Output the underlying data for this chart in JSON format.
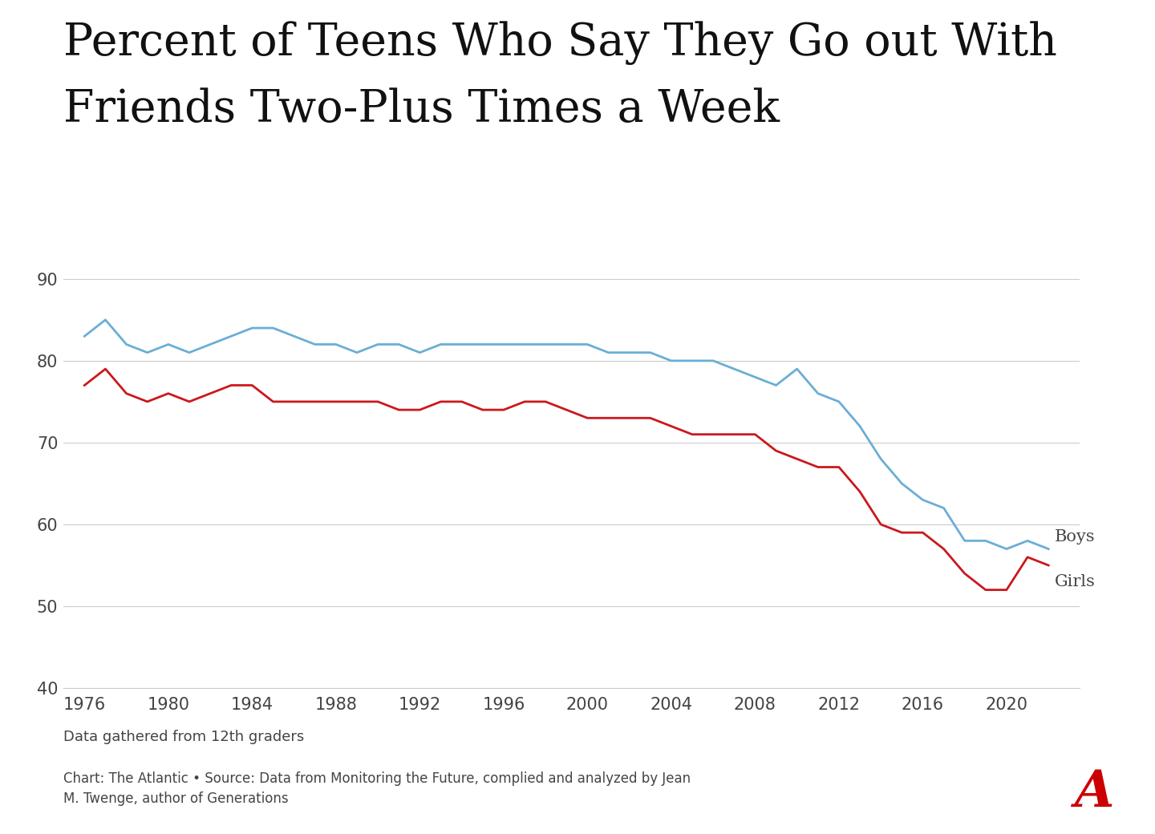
{
  "title_line1": "Percent of Teens Who Say They Go out With",
  "title_line2": "Friends Two-Plus Times a Week",
  "title_fontsize": 40,
  "boys_data": {
    "years": [
      1976,
      1977,
      1978,
      1979,
      1980,
      1981,
      1982,
      1983,
      1984,
      1985,
      1986,
      1987,
      1988,
      1989,
      1990,
      1991,
      1992,
      1993,
      1994,
      1995,
      1996,
      1997,
      1998,
      1999,
      2000,
      2001,
      2002,
      2003,
      2004,
      2005,
      2006,
      2007,
      2008,
      2009,
      2010,
      2011,
      2012,
      2013,
      2014,
      2015,
      2016,
      2017,
      2018,
      2019,
      2020,
      2021,
      2022
    ],
    "values": [
      83,
      85,
      82,
      81,
      82,
      81,
      82,
      83,
      84,
      84,
      83,
      82,
      82,
      81,
      82,
      82,
      81,
      82,
      82,
      82,
      82,
      82,
      82,
      82,
      82,
      81,
      81,
      81,
      80,
      80,
      80,
      79,
      78,
      77,
      79,
      76,
      75,
      72,
      68,
      65,
      63,
      62,
      58,
      58,
      57,
      58,
      57
    ]
  },
  "girls_data": {
    "years": [
      1976,
      1977,
      1978,
      1979,
      1980,
      1981,
      1982,
      1983,
      1984,
      1985,
      1986,
      1987,
      1988,
      1989,
      1990,
      1991,
      1992,
      1993,
      1994,
      1995,
      1996,
      1997,
      1998,
      1999,
      2000,
      2001,
      2002,
      2003,
      2004,
      2005,
      2006,
      2007,
      2008,
      2009,
      2010,
      2011,
      2012,
      2013,
      2014,
      2015,
      2016,
      2017,
      2018,
      2019,
      2020,
      2021,
      2022
    ],
    "values": [
      77,
      79,
      76,
      75,
      76,
      75,
      76,
      77,
      77,
      75,
      75,
      75,
      75,
      75,
      75,
      74,
      74,
      75,
      75,
      74,
      74,
      75,
      75,
      74,
      73,
      73,
      73,
      73,
      72,
      71,
      71,
      71,
      71,
      69,
      68,
      67,
      67,
      64,
      60,
      59,
      59,
      57,
      54,
      52,
      52,
      56,
      55
    ]
  },
  "boys_color": "#6baed6",
  "girls_color": "#cb181d",
  "line_width": 2.0,
  "ylim": [
    40,
    93
  ],
  "xlim": [
    1975.0,
    2023.5
  ],
  "yticks": [
    40,
    50,
    60,
    70,
    80,
    90
  ],
  "xticks": [
    1976,
    1980,
    1984,
    1988,
    1992,
    1996,
    2000,
    2004,
    2008,
    2012,
    2016,
    2020
  ],
  "grid_color": "#cccccc",
  "background_color": "#ffffff",
  "text_color": "#444444",
  "footer_note": "Data gathered from 12th graders",
  "footer_source": "Chart: The Atlantic • Source: Data from Monitoring the Future, complied and analyzed by Jean\nM. Twenge, author of Generations",
  "atlantic_logo_color": "#cc0000",
  "legend_boys": "Boys",
  "legend_girls": "Girls",
  "tick_fontsize": 15,
  "legend_fontsize": 15,
  "footer_note_fontsize": 13,
  "footer_source_fontsize": 12
}
